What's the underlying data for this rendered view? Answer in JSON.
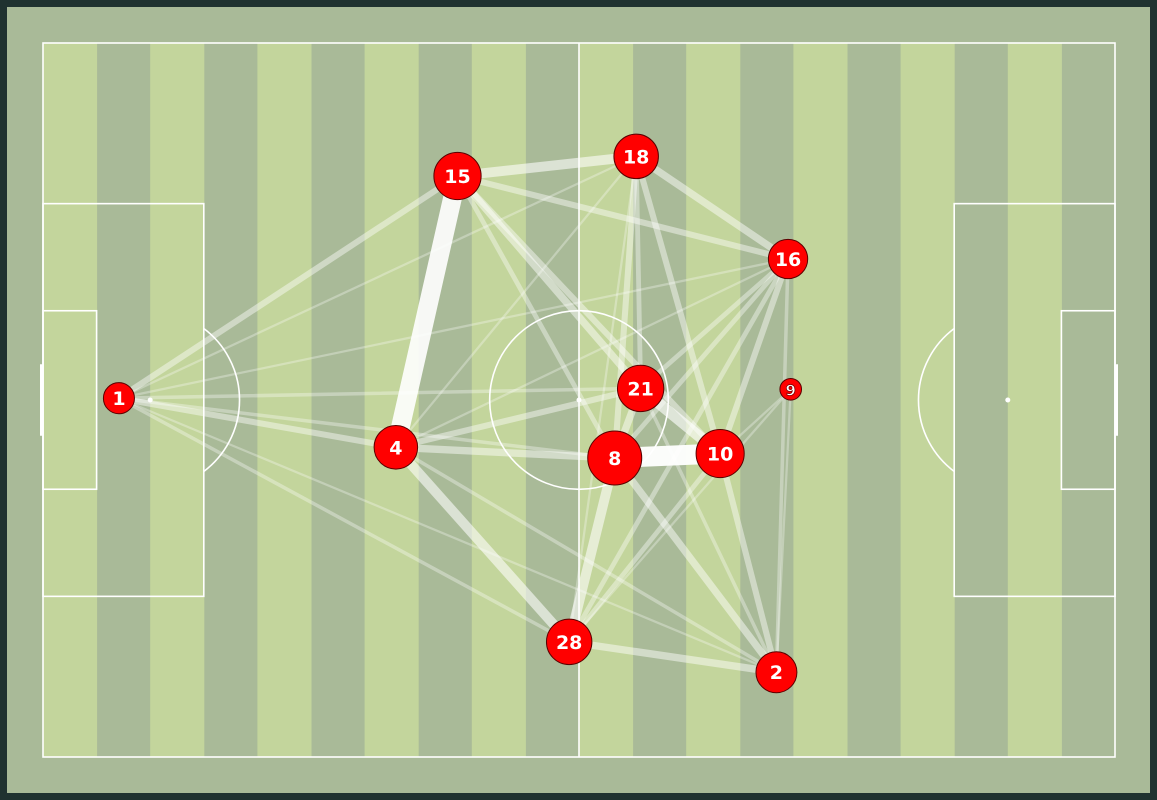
{
  "chart_data": {
    "type": "pass-network",
    "colors": {
      "frame": "#203230",
      "grass_dark": "#a9ba98",
      "grass_light": "#c3d59c",
      "lines": "#ffffff",
      "node_fill": "#ff0000",
      "node_edge": "#5a0000",
      "node_text": "#ffffff",
      "edge": "#ffffff"
    },
    "pitch": {
      "length": 120,
      "width": 80
    },
    "players": [
      {
        "number": "1",
        "x": 8.5,
        "y": 40.2,
        "touches": 10
      },
      {
        "number": "4",
        "x": 39.5,
        "y": 34.7,
        "touches": 30
      },
      {
        "number": "15",
        "x": 46.4,
        "y": 65.1,
        "touches": 38
      },
      {
        "number": "18",
        "x": 66.4,
        "y": 67.3,
        "touches": 32
      },
      {
        "number": "16",
        "x": 83.4,
        "y": 55.8,
        "touches": 22
      },
      {
        "number": "21",
        "x": 66.9,
        "y": 41.3,
        "touches": 36
      },
      {
        "number": "9",
        "x": 83.7,
        "y": 41.2,
        "touches": 2
      },
      {
        "number": "8",
        "x": 64.0,
        "y": 33.5,
        "touches": 55
      },
      {
        "number": "10",
        "x": 75.8,
        "y": 34.0,
        "touches": 40
      },
      {
        "number": "28",
        "x": 58.9,
        "y": 12.9,
        "touches": 34
      },
      {
        "number": "2",
        "x": 82.1,
        "y": 9.5,
        "touches": 25
      }
    ],
    "passes": [
      [
        "1",
        "4",
        4
      ],
      [
        "1",
        "15",
        4
      ],
      [
        "1",
        "18",
        1
      ],
      [
        "1",
        "21",
        2
      ],
      [
        "1",
        "8",
        2
      ],
      [
        "1",
        "28",
        2
      ],
      [
        "1",
        "2",
        1
      ],
      [
        "1",
        "16",
        1
      ],
      [
        "4",
        "15",
        14
      ],
      [
        "4",
        "8",
        5
      ],
      [
        "4",
        "28",
        7
      ],
      [
        "4",
        "21",
        4
      ],
      [
        "4",
        "18",
        1
      ],
      [
        "4",
        "16",
        1
      ],
      [
        "4",
        "2",
        2
      ],
      [
        "15",
        "18",
        7
      ],
      [
        "15",
        "16",
        4
      ],
      [
        "15",
        "21",
        5
      ],
      [
        "15",
        "10",
        4
      ],
      [
        "15",
        "8",
        3
      ],
      [
        "18",
        "16",
        5
      ],
      [
        "18",
        "21",
        3
      ],
      [
        "18",
        "8",
        4
      ],
      [
        "18",
        "10",
        4
      ],
      [
        "18",
        "28",
        1
      ],
      [
        "16",
        "10",
        4
      ],
      [
        "16",
        "21",
        3
      ],
      [
        "16",
        "8",
        3
      ],
      [
        "16",
        "28",
        3
      ],
      [
        "16",
        "2",
        2
      ],
      [
        "21",
        "10",
        8
      ],
      [
        "21",
        "8",
        5
      ],
      [
        "21",
        "2",
        2
      ],
      [
        "8",
        "10",
        15
      ],
      [
        "8",
        "28",
        7
      ],
      [
        "8",
        "2",
        5
      ],
      [
        "10",
        "28",
        3
      ],
      [
        "10",
        "2",
        4
      ],
      [
        "28",
        "2",
        5
      ],
      [
        "9",
        "10",
        1
      ],
      [
        "9",
        "2",
        1
      ],
      [
        "9",
        "28",
        1
      ]
    ]
  }
}
